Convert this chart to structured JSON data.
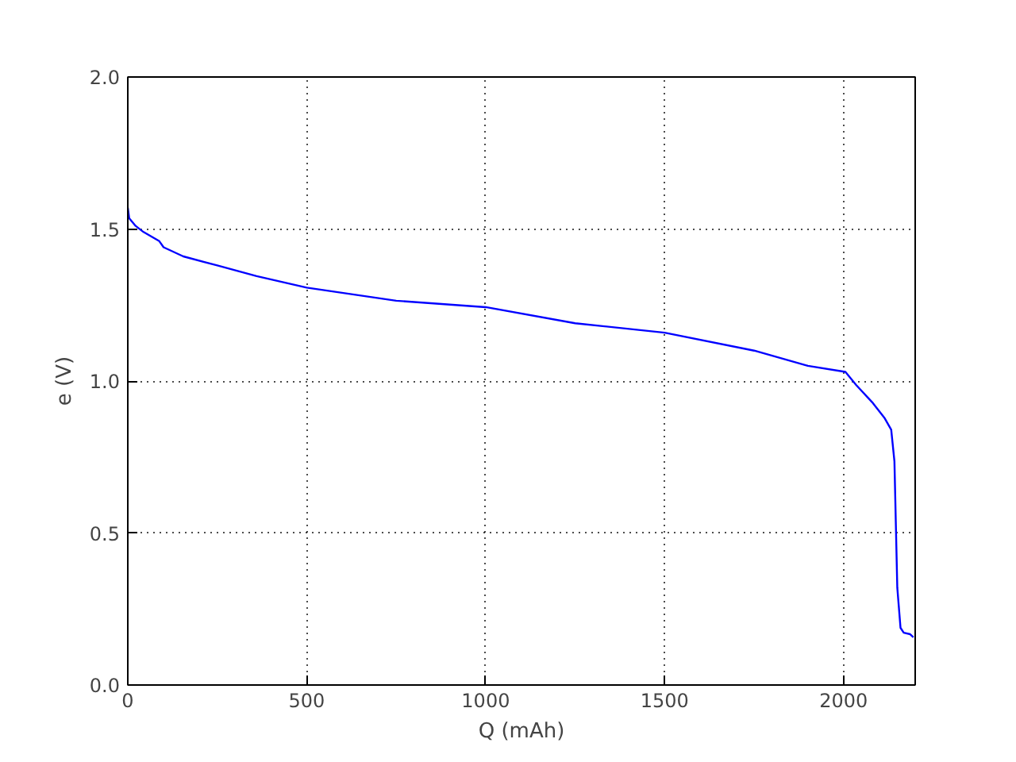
{
  "chart_data": {
    "type": "line",
    "xlabel": "Q (mAh)",
    "ylabel": "e (V)",
    "x": [
      0,
      4,
      22,
      44,
      88,
      100,
      155,
      250,
      360,
      500,
      750,
      1000,
      1250,
      1500,
      1750,
      1900,
      2005,
      2035,
      2080,
      2115,
      2133,
      2142,
      2146,
      2150,
      2159,
      2168,
      2186,
      2195
    ],
    "series": [
      {
        "color": "#0000ff",
        "values": [
          1.57,
          1.535,
          1.51,
          1.49,
          1.46,
          1.44,
          1.41,
          1.38,
          1.345,
          1.307,
          1.264,
          1.243,
          1.19,
          1.159,
          1.1,
          1.05,
          1.03,
          0.987,
          0.93,
          0.877,
          0.84,
          0.736,
          0.527,
          0.32,
          0.188,
          0.172,
          0.167,
          0.157
        ]
      }
    ],
    "xlim": [
      0,
      2200
    ],
    "xticks": [
      0,
      500,
      1000,
      1500,
      2000
    ],
    "ylim": [
      0,
      2.0
    ],
    "yticks": [
      {
        "value": 0,
        "label": "0.0"
      },
      {
        "value": 0.5,
        "label": "0.5"
      },
      {
        "value": 1.0,
        "label": "1.0"
      },
      {
        "value": 1.5,
        "label": "1.5"
      },
      {
        "value": 2.0,
        "label": "2.0"
      }
    ],
    "grid": true,
    "line_style": "solid",
    "marker": "none"
  }
}
